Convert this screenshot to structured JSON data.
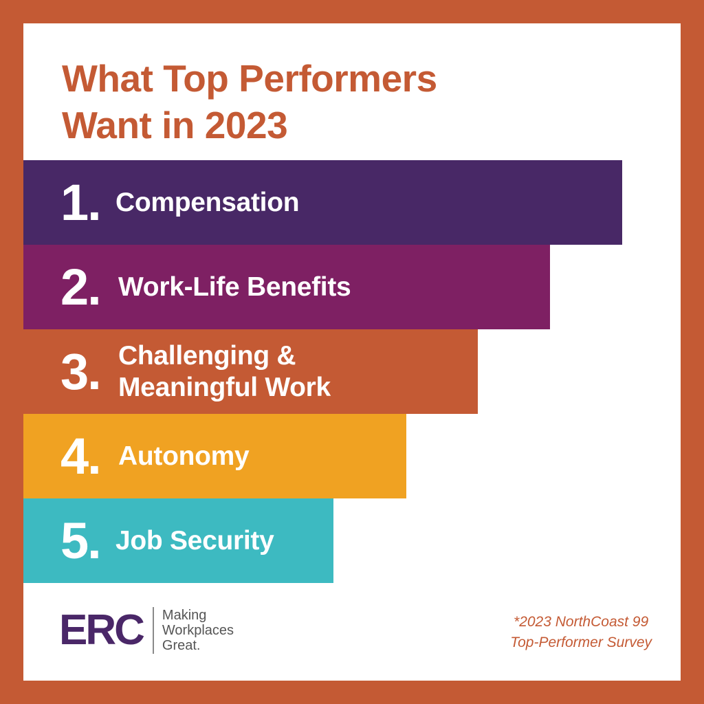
{
  "title": {
    "line1": "What Top Performers",
    "line2": "Want in 2023"
  },
  "items": [
    {
      "number": "1.",
      "label_lines": [
        "Compensation"
      ],
      "color": "#482866"
    },
    {
      "number": "2.",
      "label_lines": [
        "Work-Life Benefits"
      ],
      "color": "#7e2063"
    },
    {
      "number": "3.",
      "label_lines": [
        "Challenging &",
        "Meaningful Work"
      ],
      "color": "#c45a34"
    },
    {
      "number": "4.",
      "label_lines": [
        "Autonomy"
      ],
      "color": "#f0a222"
    },
    {
      "number": "5.",
      "label_lines": [
        "Job Security"
      ],
      "color": "#3dbac1"
    }
  ],
  "logo": {
    "mark": "ERC",
    "tagline_lines": [
      "Making",
      "Workplaces",
      "Great."
    ]
  },
  "source": {
    "line1": "*2023 NorthCoast 99",
    "line2": "Top-Performer Survey"
  },
  "colors": {
    "frame": "#c45a34",
    "title": "#c45a34",
    "logo": "#4a2768"
  }
}
